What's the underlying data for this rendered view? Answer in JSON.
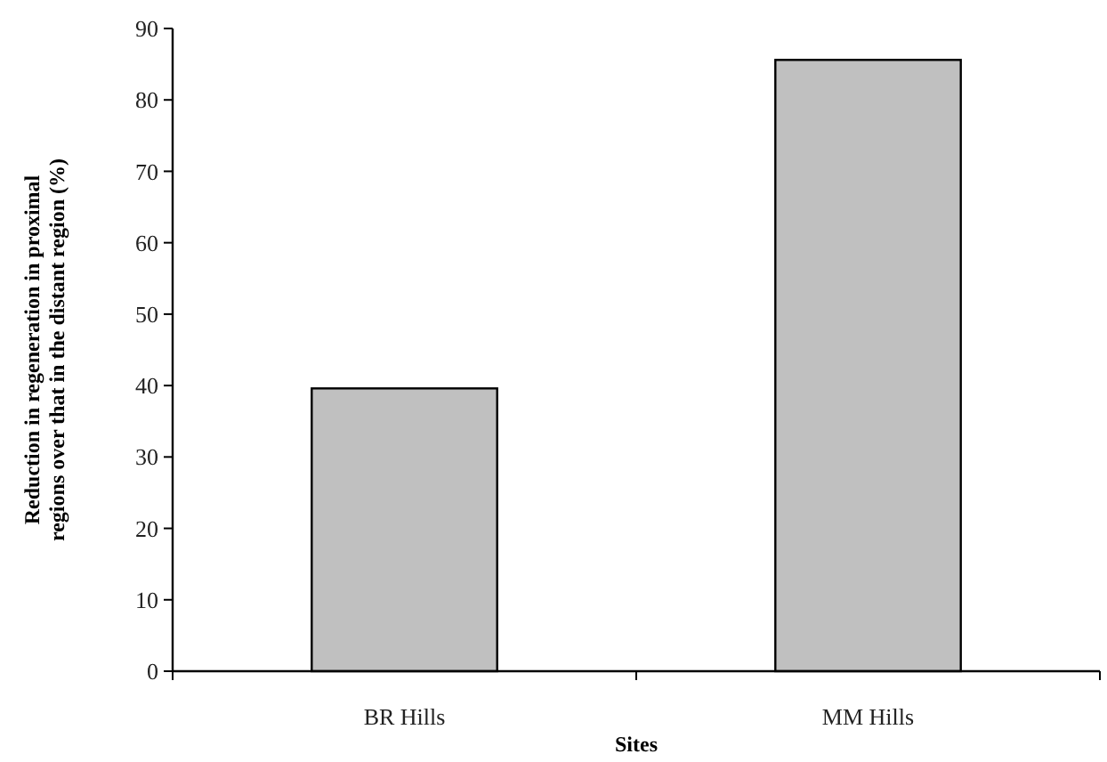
{
  "chart_data": {
    "type": "bar",
    "xlabel": "Sites",
    "ylabel": "Reduction in regeneration in proximal regions over that in the distant region (%)",
    "categories": [
      "BR Hills",
      "MM Hills"
    ],
    "values": [
      39.6,
      85.6
    ],
    "color": "#c0c0c0",
    "ylim": [
      0,
      90
    ],
    "yticks": [
      0,
      10,
      20,
      30,
      40,
      50,
      60,
      70,
      80,
      90
    ],
    "grid": false
  }
}
